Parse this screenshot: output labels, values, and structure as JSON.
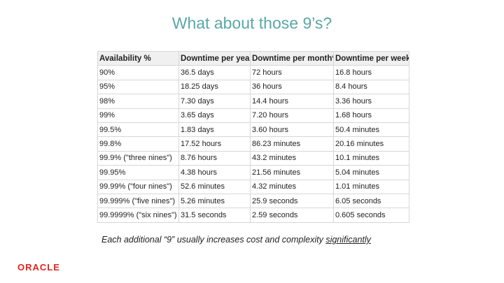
{
  "slide": {
    "title": "What about those 9’s?"
  },
  "table": {
    "headers": [
      "Availability %",
      "Downtime per year",
      "Downtime per month*",
      "Downtime per week"
    ],
    "rows": [
      [
        "90%",
        "36.5 days",
        "72 hours",
        "16.8 hours"
      ],
      [
        "95%",
        "18.25 days",
        "36 hours",
        "8.4 hours"
      ],
      [
        "98%",
        "7.30 days",
        "14.4 hours",
        "3.36 hours"
      ],
      [
        "99%",
        "3.65 days",
        "7.20 hours",
        "1.68 hours"
      ],
      [
        "99.5%",
        "1.83 days",
        "3.60 hours",
        "50.4 minutes"
      ],
      [
        "99.8%",
        "17.52 hours",
        "86.23 minutes",
        "20.16 minutes"
      ],
      [
        "99.9% (\"three nines\")",
        "8.76 hours",
        "43.2 minutes",
        "10.1 minutes"
      ],
      [
        "99.95%",
        "4.38 hours",
        "21.56 minutes",
        "5.04 minutes"
      ],
      [
        "99.99% (\"four nines\")",
        "52.6 minutes",
        "4.32 minutes",
        "1.01 minutes"
      ],
      [
        "99.999% (\"five nines\")",
        "5.26 minutes",
        "25.9 seconds",
        "6.05 seconds"
      ],
      [
        "99.9999% (\"six nines\")",
        "31.5 seconds",
        "2.59 seconds",
        "0.605 seconds"
      ]
    ]
  },
  "caption": {
    "text": "Each additional “9” usually increases cost and complexity ",
    "emphasis": "significantly"
  },
  "logo": {
    "text": "ORACLE",
    "color": "#e2231a"
  }
}
